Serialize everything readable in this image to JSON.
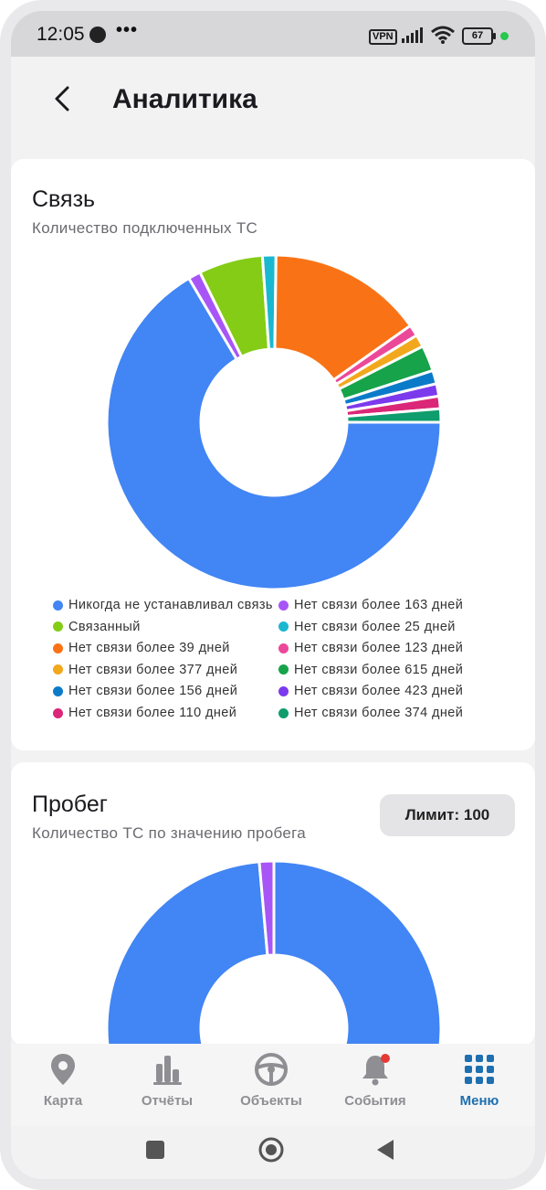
{
  "status_bar": {
    "time": "12:05",
    "more": "•••",
    "vpn": "VPN",
    "battery": "67"
  },
  "header": {
    "title": "Аналитика"
  },
  "connection_card": {
    "title": "Связь",
    "subtitle": "Количество подключенных ТС"
  },
  "mileage_card": {
    "title": "Пробег",
    "subtitle": "Количество ТС по значению пробега",
    "limit_label": "Лимит: 100"
  },
  "chart_data": [
    {
      "type": "pie",
      "title": "Связь",
      "subtitle": "Количество подключенных ТС",
      "donut": true,
      "legend_position": "bottom",
      "series": [
        {
          "name": "Никогда не устанавливал связь",
          "value": 66.5,
          "color": "#4285f4"
        },
        {
          "name": "Нет связи более 163 дней",
          "value": 1.2,
          "color": "#a855f7"
        },
        {
          "name": "Связанный",
          "value": 6.2,
          "color": "#84cc16"
        },
        {
          "name": "Нет связи более 25 дней",
          "value": 1.3,
          "color": "#1ab8d0"
        },
        {
          "name": "Нет связи более 39 дней",
          "value": 15.0,
          "color": "#f97316"
        },
        {
          "name": "Нет связи более 123 дней",
          "value": 1.1,
          "color": "#ec4899"
        },
        {
          "name": "Нет связи более 377 дней",
          "value": 1.2,
          "color": "#f2a81d"
        },
        {
          "name": "Нет связи более 615 дней",
          "value": 2.5,
          "color": "#16a34a"
        },
        {
          "name": "Нет связи более 156 дней",
          "value": 1.3,
          "color": "#0b7bc9"
        },
        {
          "name": "Нет связи более 423 дней",
          "value": 1.2,
          "color": "#7c3aed"
        },
        {
          "name": "Нет связи более 110 дней",
          "value": 1.2,
          "color": "#db2777"
        },
        {
          "name": "Нет связи более 374 дней",
          "value": 1.3,
          "color": "#0f9d6e"
        }
      ]
    },
    {
      "type": "pie",
      "title": "Пробег",
      "subtitle": "Количество ТС по значению пробега",
      "donut": true,
      "series": [
        {
          "name": "",
          "value": 98.6,
          "color": "#4285f4"
        },
        {
          "name": "",
          "value": 1.4,
          "color": "#a855f7"
        }
      ]
    }
  ],
  "tabbar": {
    "items": [
      {
        "label": "Карта",
        "icon": "map-pin-icon"
      },
      {
        "label": "Отчёты",
        "icon": "bar-chart-icon"
      },
      {
        "label": "Объекты",
        "icon": "steering-wheel-icon"
      },
      {
        "label": "События",
        "icon": "bell-icon"
      },
      {
        "label": "Меню",
        "icon": "grid-menu-icon"
      }
    ],
    "active_color": "#1d6fb0",
    "inactive_color": "#8e8e93"
  }
}
